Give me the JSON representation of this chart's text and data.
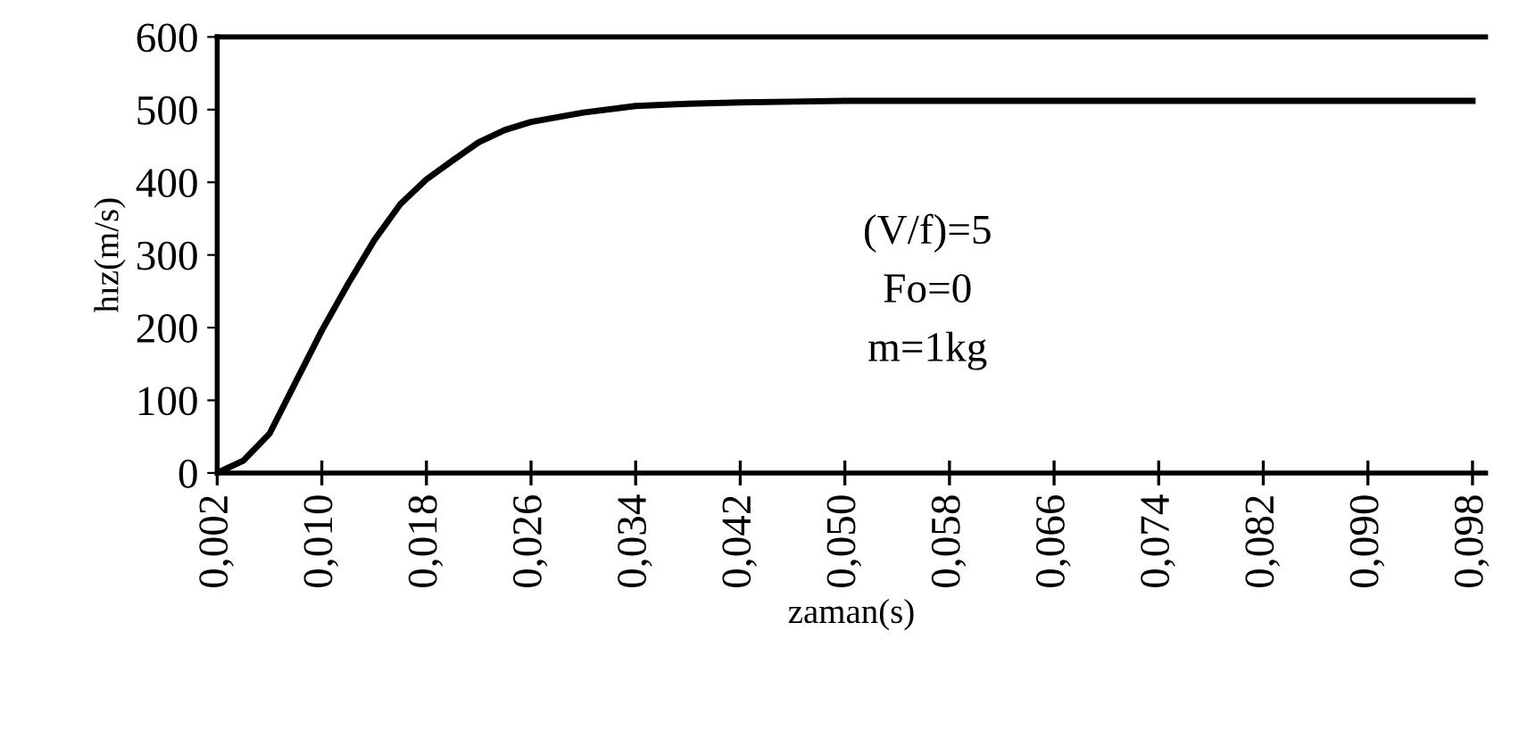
{
  "chart_data": {
    "type": "line",
    "xlabel": "zaman(s)",
    "ylabel": "hız(m/s)",
    "x": [
      0.002,
      0.004,
      0.006,
      0.008,
      0.01,
      0.012,
      0.014,
      0.016,
      0.018,
      0.02,
      0.022,
      0.024,
      0.026,
      0.03,
      0.034,
      0.038,
      0.042,
      0.046,
      0.05,
      0.06,
      0.07,
      0.08,
      0.09,
      0.098
    ],
    "series": [
      {
        "color": "#000000",
        "values": [
          0,
          17,
          54,
          125,
          196,
          260,
          320,
          370,
          404,
          430,
          455,
          472,
          483,
          496,
          505,
          508,
          510,
          511,
          512,
          512,
          512,
          512,
          512,
          512
        ]
      }
    ],
    "xlim": [
      0.002,
      0.099
    ],
    "xticks": [
      {
        "value": 0.002,
        "label": "0,002"
      },
      {
        "value": 0.01,
        "label": "0,010"
      },
      {
        "value": 0.018,
        "label": "0,018"
      },
      {
        "value": 0.026,
        "label": "0,026"
      },
      {
        "value": 0.034,
        "label": "0,034"
      },
      {
        "value": 0.042,
        "label": "0,042"
      },
      {
        "value": 0.05,
        "label": "0,050"
      },
      {
        "value": 0.058,
        "label": "0,058"
      },
      {
        "value": 0.066,
        "label": "0,066"
      },
      {
        "value": 0.074,
        "label": "0,074"
      },
      {
        "value": 0.082,
        "label": "0,082"
      },
      {
        "value": 0.09,
        "label": "0,090"
      },
      {
        "value": 0.098,
        "label": "0,098"
      }
    ],
    "ylim": [
      0,
      600
    ],
    "yticks": [
      0,
      100,
      200,
      300,
      400,
      500,
      600
    ],
    "annotations": [
      "(V/f)=5",
      "Fo=0",
      "m=1kg"
    ],
    "grid": false,
    "legend": false,
    "marker": "none",
    "line_style": "solid"
  }
}
